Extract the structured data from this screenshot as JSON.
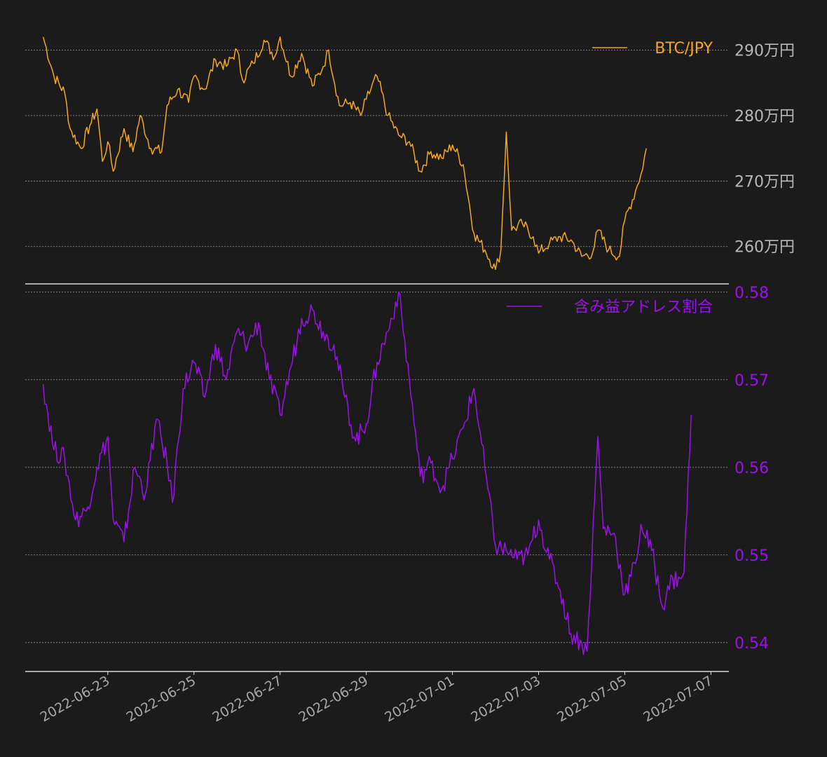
{
  "chart_data": [
    {
      "type": "line",
      "title": "",
      "color": "#f5a623",
      "series": [
        {
          "name": "BTC/JPY",
          "unit": "万円"
        }
      ],
      "ylim": [
        254.3,
        295.5
      ],
      "yticks": [
        260,
        270,
        280,
        290
      ],
      "ytick_labels": [
        "260万円",
        "270万円",
        "280万円",
        "290万円"
      ],
      "grid": true,
      "legend": "top-right",
      "x_start": "2022-06-21 12:00",
      "x_end": "2022-07-05 12:00",
      "points": [
        [
          "2022-06-21 12:00",
          292.0
        ],
        [
          "2022-06-21 18:00",
          286.0
        ],
        [
          "2022-06-22 00:00",
          283.5
        ],
        [
          "2022-06-22 03:00",
          278.0
        ],
        [
          "2022-06-22 09:00",
          275.0
        ],
        [
          "2022-06-22 14:00",
          278.5
        ],
        [
          "2022-06-22 18:00",
          281.0
        ],
        [
          "2022-06-22 21:00",
          273.0
        ],
        [
          "2022-06-23 00:00",
          276.0
        ],
        [
          "2022-06-23 03:00",
          271.5
        ],
        [
          "2022-06-23 09:00",
          278.0
        ],
        [
          "2022-06-23 14:00",
          274.5
        ],
        [
          "2022-06-23 18:00",
          280.0
        ],
        [
          "2022-06-24 00:00",
          275.0
        ],
        [
          "2022-06-24 06:00",
          274.5
        ],
        [
          "2022-06-24 09:00",
          281.5
        ],
        [
          "2022-06-24 15:00",
          284.0
        ],
        [
          "2022-06-24 21:00",
          282.0
        ],
        [
          "2022-06-25 00:00",
          286.0
        ],
        [
          "2022-06-25 06:00",
          284.0
        ],
        [
          "2022-06-25 12:00",
          288.5
        ],
        [
          "2022-06-25 18:00",
          287.5
        ],
        [
          "2022-06-26 00:00",
          290.0
        ],
        [
          "2022-06-26 03:00",
          285.5
        ],
        [
          "2022-06-26 09:00",
          288.0
        ],
        [
          "2022-06-26 15:00",
          291.5
        ],
        [
          "2022-06-26 21:00",
          289.0
        ],
        [
          "2022-06-27 00:00",
          292.0
        ],
        [
          "2022-06-27 06:00",
          286.0
        ],
        [
          "2022-06-27 12:00",
          289.5
        ],
        [
          "2022-06-27 18:00",
          284.5
        ],
        [
          "2022-06-28 00:00",
          287.5
        ],
        [
          "2022-06-28 03:00",
          290.0
        ],
        [
          "2022-06-28 09:00",
          281.5
        ],
        [
          "2022-06-28 15:00",
          282.0
        ],
        [
          "2022-06-28 21:00",
          280.0
        ],
        [
          "2022-06-29 00:00",
          282.5
        ],
        [
          "2022-06-29 06:00",
          286.0
        ],
        [
          "2022-06-29 12:00",
          280.0
        ],
        [
          "2022-06-29 18:00",
          277.0
        ],
        [
          "2022-06-30 00:00",
          276.0
        ],
        [
          "2022-06-30 06:00",
          271.5
        ],
        [
          "2022-06-30 12:00",
          274.5
        ],
        [
          "2022-06-30 18:00",
          273.5
        ],
        [
          "2022-07-01 00:00",
          275.5
        ],
        [
          "2022-07-01 06:00",
          272.5
        ],
        [
          "2022-07-01 12:00",
          262.0
        ],
        [
          "2022-07-01 18:00",
          259.5
        ],
        [
          "2022-07-02 00:00",
          256.5
        ],
        [
          "2022-07-02 03:00",
          259.5
        ],
        [
          "2022-07-02 06:00",
          277.5
        ],
        [
          "2022-07-02 09:00",
          262.5
        ],
        [
          "2022-07-02 15:00",
          263.5
        ],
        [
          "2022-07-02 21:00",
          261.5
        ],
        [
          "2022-07-03 00:00",
          259.0
        ],
        [
          "2022-07-03 06:00",
          260.5
        ],
        [
          "2022-07-03 12:00",
          261.5
        ],
        [
          "2022-07-03 18:00",
          261.0
        ],
        [
          "2022-07-04 00:00",
          258.5
        ],
        [
          "2022-07-04 06:00",
          259.0
        ],
        [
          "2022-07-04 09:00",
          262.5
        ],
        [
          "2022-07-04 15:00",
          259.5
        ],
        [
          "2022-07-04 21:00",
          258.5
        ],
        [
          "2022-07-05 00:00",
          264.0
        ],
        [
          "2022-07-05 06:00",
          268.5
        ],
        [
          "2022-07-05 09:00",
          271.0
        ],
        [
          "2022-07-05 12:00",
          275.0
        ]
      ]
    },
    {
      "type": "line",
      "title": "",
      "color": "#9b12e8",
      "series": [
        {
          "name": "含み益アドレス割合"
        }
      ],
      "ylim": [
        0.5367,
        0.5803
      ],
      "yticks": [
        0.54,
        0.55,
        0.56,
        0.57,
        0.58
      ],
      "ytick_labels": [
        "0.54",
        "0.55",
        "0.56",
        "0.57",
        "0.58"
      ],
      "grid": true,
      "legend": "top-right",
      "x_start": "2022-06-21 12:00",
      "x_end": "2022-07-06 13:00",
      "xticks": [
        "2022-06-23",
        "2022-06-25",
        "2022-06-27",
        "2022-06-29",
        "2022-07-01",
        "2022-07-03",
        "2022-07-05",
        "2022-07-07"
      ],
      "points": [
        [
          "2022-06-21 12:00",
          0.5695
        ],
        [
          "2022-06-21 18:00",
          0.562
        ],
        [
          "2022-06-22 00:00",
          0.561
        ],
        [
          "2022-06-22 06:00",
          0.554
        ],
        [
          "2022-06-22 12:00",
          0.555
        ],
        [
          "2022-06-22 18:00",
          0.56
        ],
        [
          "2022-06-23 00:00",
          0.5635
        ],
        [
          "2022-06-23 03:00",
          0.554
        ],
        [
          "2022-06-23 09:00",
          0.5515
        ],
        [
          "2022-06-23 15:00",
          0.56
        ],
        [
          "2022-06-23 21:00",
          0.557
        ],
        [
          "2022-06-24 03:00",
          0.5655
        ],
        [
          "2022-06-24 09:00",
          0.5605
        ],
        [
          "2022-06-24 12:00",
          0.556
        ],
        [
          "2022-06-24 18:00",
          0.569
        ],
        [
          "2022-06-25 00:00",
          0.572
        ],
        [
          "2022-06-25 06:00",
          0.568
        ],
        [
          "2022-06-25 12:00",
          0.574
        ],
        [
          "2022-06-25 18:00",
          0.57
        ],
        [
          "2022-06-26 00:00",
          0.5755
        ],
        [
          "2022-06-26 06:00",
          0.574
        ],
        [
          "2022-06-26 12:00",
          0.5765
        ],
        [
          "2022-06-26 18:00",
          0.57
        ],
        [
          "2022-06-27 00:00",
          0.566
        ],
        [
          "2022-06-27 06:00",
          0.5715
        ],
        [
          "2022-06-27 12:00",
          0.577
        ],
        [
          "2022-06-27 18:00",
          0.578
        ],
        [
          "2022-06-28 00:00",
          0.5755
        ],
        [
          "2022-06-28 06:00",
          0.574
        ],
        [
          "2022-06-28 12:00",
          0.568
        ],
        [
          "2022-06-28 18:00",
          0.563
        ],
        [
          "2022-06-29 00:00",
          0.565
        ],
        [
          "2022-06-29 06:00",
          0.572
        ],
        [
          "2022-06-29 12:00",
          0.5755
        ],
        [
          "2022-06-29 18:00",
          0.58
        ],
        [
          "2022-06-30 00:00",
          0.57
        ],
        [
          "2022-06-30 06:00",
          0.559
        ],
        [
          "2022-06-30 12:00",
          0.5605
        ],
        [
          "2022-06-30 18:00",
          0.5575
        ],
        [
          "2022-07-01 00:00",
          0.561
        ],
        [
          "2022-07-01 06:00",
          0.5645
        ],
        [
          "2022-07-01 12:00",
          0.569
        ],
        [
          "2022-07-01 18:00",
          0.56
        ],
        [
          "2022-07-02 00:00",
          0.551
        ],
        [
          "2022-07-02 06:00",
          0.5505
        ],
        [
          "2022-07-02 12:00",
          0.5495
        ],
        [
          "2022-07-02 18:00",
          0.55
        ],
        [
          "2022-07-03 00:00",
          0.554
        ],
        [
          "2022-07-03 06:00",
          0.5495
        ],
        [
          "2022-07-03 12:00",
          0.546
        ],
        [
          "2022-07-03 18:00",
          0.541
        ],
        [
          "2022-07-04 00:00",
          0.54
        ],
        [
          "2022-07-04 03:00",
          0.539
        ],
        [
          "2022-07-04 09:00",
          0.5635
        ],
        [
          "2022-07-04 12:00",
          0.553
        ],
        [
          "2022-07-04 18:00",
          0.5525
        ],
        [
          "2022-07-05 00:00",
          0.5455
        ],
        [
          "2022-07-05 06:00",
          0.549
        ],
        [
          "2022-07-05 09:00",
          0.5535
        ],
        [
          "2022-07-05 15:00",
          0.5505
        ],
        [
          "2022-07-05 21:00",
          0.544
        ],
        [
          "2022-07-06 00:00",
          0.5465
        ],
        [
          "2022-07-06 06:00",
          0.5475
        ],
        [
          "2022-07-06 09:00",
          0.548
        ],
        [
          "2022-07-06 13:00",
          0.566
        ]
      ]
    }
  ]
}
